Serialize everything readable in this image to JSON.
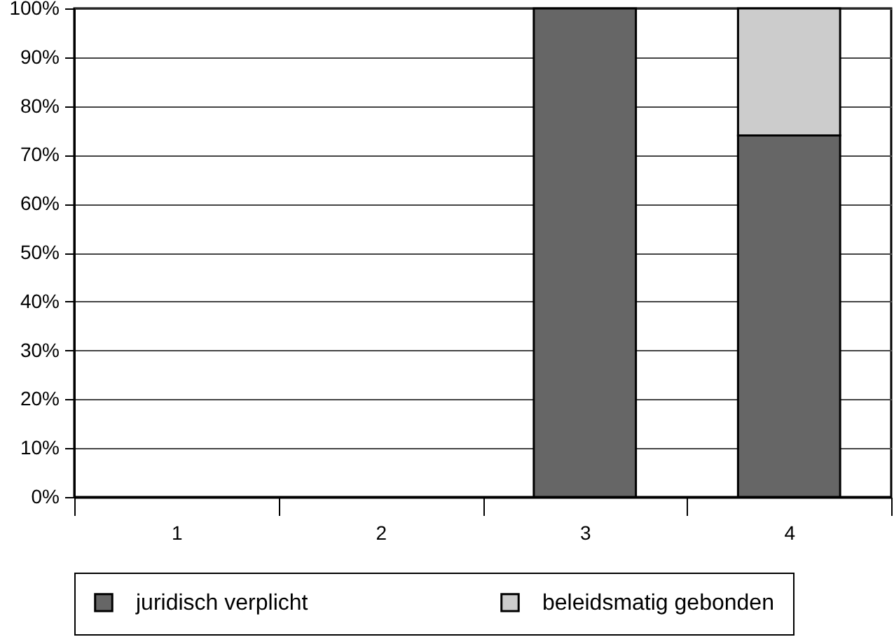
{
  "chart_data": {
    "type": "bar",
    "stacked": true,
    "categories": [
      "1",
      "2",
      "3",
      "4"
    ],
    "series": [
      {
        "name": "juridisch verplicht",
        "color": "#666666",
        "values": [
          null,
          null,
          100,
          74
        ]
      },
      {
        "name": "beleidsmatig gebonden",
        "color": "#cccccc",
        "values": [
          null,
          null,
          null,
          26
        ]
      }
    ],
    "ylim": [
      0,
      100
    ],
    "yticks": [
      {
        "value": 0,
        "label": "0%"
      },
      {
        "value": 10,
        "label": "10%"
      },
      {
        "value": 20,
        "label": "20%"
      },
      {
        "value": 30,
        "label": "30%"
      },
      {
        "value": 40,
        "label": "40%"
      },
      {
        "value": 50,
        "label": "50%"
      },
      {
        "value": 60,
        "label": "60%"
      },
      {
        "value": 70,
        "label": "70%"
      },
      {
        "value": 80,
        "label": "80%"
      },
      {
        "value": 90,
        "label": "90%"
      },
      {
        "value": 100,
        "label": "100%"
      }
    ],
    "grid": "y",
    "legend": "bottom"
  }
}
